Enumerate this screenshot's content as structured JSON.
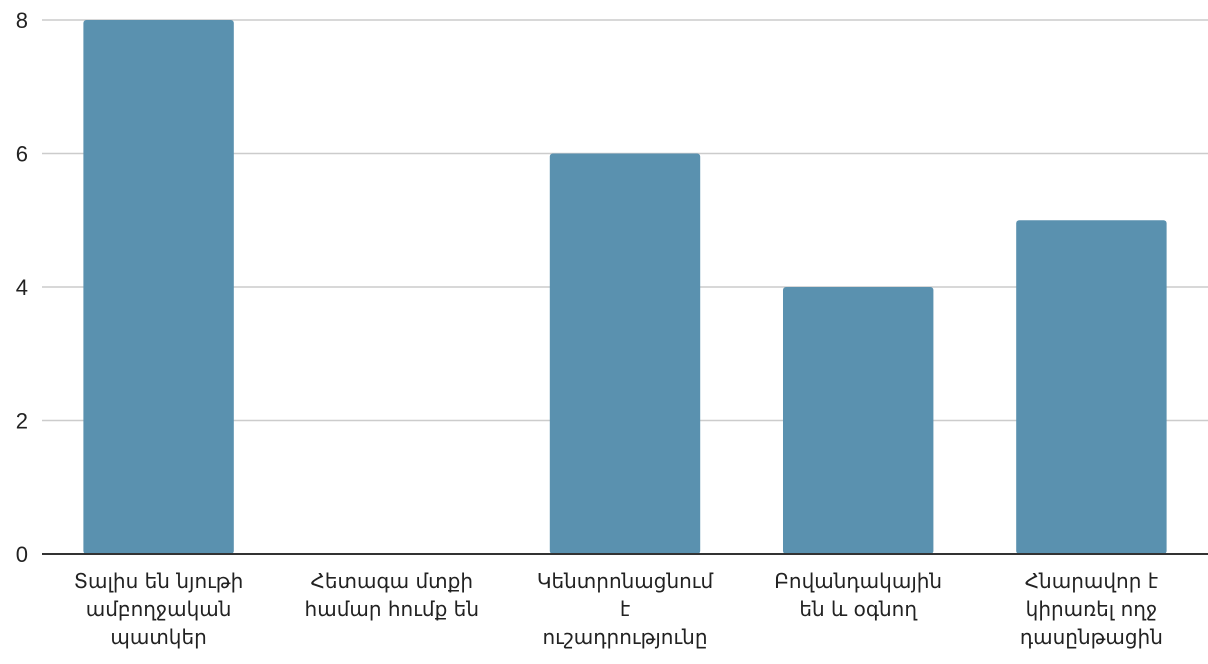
{
  "chart_data": {
    "type": "bar",
    "title": "",
    "xlabel": "",
    "ylabel": "",
    "categories": [
      [
        "Տալիս են նյութի",
        "ամբողջական",
        "պատկեր"
      ],
      [
        "Հետագա մտքի",
        "համար հումք են"
      ],
      [
        "Կենտրոնացնում",
        "է",
        "ուշադրությունը"
      ],
      [
        "Բովանդակային",
        "են և օգնող"
      ],
      [
        "Հնարավոր է",
        "կիրառել ողջ",
        "դասընթացին"
      ]
    ],
    "values": [
      8,
      0,
      6,
      4,
      5
    ],
    "ylim": [
      0,
      8
    ],
    "yticks": [
      "0",
      "2",
      "4",
      "6",
      "8"
    ],
    "grid": true,
    "legend": "none",
    "colors": {
      "bar": "#5a91af",
      "grid": "#cccccc",
      "axis": "#333333"
    }
  }
}
